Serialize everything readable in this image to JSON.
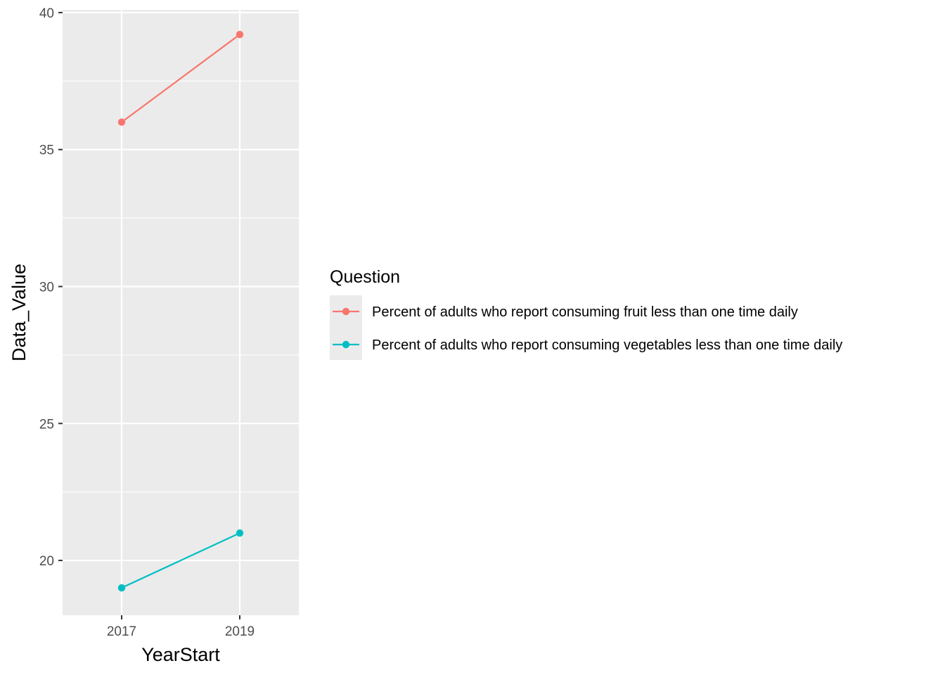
{
  "chart_data": {
    "type": "line",
    "xlabel": "YearStart",
    "ylabel": "Data_Value",
    "x": [
      2017,
      2019
    ],
    "x_tick_labels": [
      "2017",
      "2019"
    ],
    "xlim": [
      2016,
      2020
    ],
    "ylim": [
      18,
      40.1
    ],
    "y_ticks": [
      20,
      25,
      30,
      35,
      40
    ],
    "y_tick_labels": [
      "20",
      "25",
      "30",
      "35",
      "40"
    ],
    "grid": true,
    "legend": {
      "title": "Question",
      "placement": "right"
    },
    "series": [
      {
        "name": "Percent of adults who report consuming fruit less than one time daily",
        "values": [
          36.0,
          39.2
        ],
        "color": "#F8766D"
      },
      {
        "name": "Percent of adults who report consuming vegetables less than one time daily",
        "values": [
          19.0,
          21.0
        ],
        "color": "#00BFC4"
      }
    ]
  }
}
